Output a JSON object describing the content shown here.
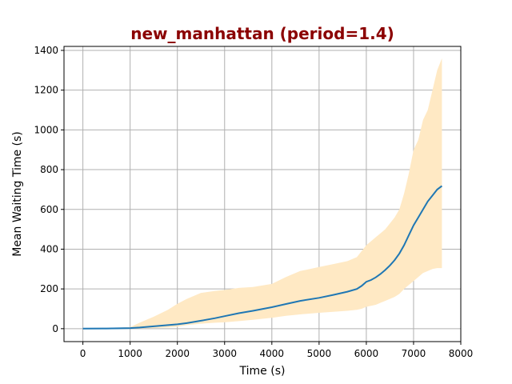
{
  "chart_data": {
    "type": "line",
    "title": "new_manhattan (period=1.4)",
    "xlabel": "Time (s)",
    "ylabel": "Mean Waiting Time (s)",
    "xlim": [
      -400,
      8000
    ],
    "ylim": [
      -65,
      1420
    ],
    "xticks": [
      0,
      1000,
      2000,
      3000,
      4000,
      5000,
      6000,
      7000,
      8000
    ],
    "yticks": [
      0,
      200,
      400,
      600,
      800,
      1000,
      1200,
      1400
    ],
    "grid": true,
    "colors": {
      "title": "#8b0000",
      "line": "#1f77b4",
      "band": "#ffe9c4",
      "grid": "#b0b0b0"
    },
    "series": [
      {
        "x": [
          0,
          500,
          1000,
          1200,
          1500,
          1800,
          2000,
          2200,
          2500,
          2800,
          3000,
          3300,
          3600,
          4000,
          4300,
          4600,
          5000,
          5300,
          5600,
          5800,
          5900,
          6000,
          6100,
          6200,
          6300,
          6400,
          6500,
          6600,
          6700,
          6800,
          6900,
          7000,
          7100,
          7200,
          7300,
          7400,
          7500,
          7600
        ],
        "y": [
          0,
          1,
          3,
          6,
          12,
          18,
          22,
          28,
          40,
          53,
          63,
          78,
          90,
          108,
          124,
          140,
          155,
          170,
          186,
          200,
          215,
          236,
          245,
          258,
          275,
          295,
          318,
          345,
          378,
          420,
          470,
          520,
          560,
          600,
          640,
          670,
          700,
          718
        ],
        "band_upper": [
          0,
          2,
          8,
          30,
          60,
          95,
          125,
          150,
          180,
          190,
          195,
          205,
          210,
          225,
          260,
          290,
          310,
          325,
          340,
          360,
          390,
          420,
          440,
          460,
          480,
          500,
          530,
          560,
          600,
          680,
          780,
          900,
          950,
          1050,
          1100,
          1200,
          1300,
          1360
        ],
        "band_lower": [
          0,
          0,
          0,
          1,
          3,
          6,
          10,
          18,
          25,
          30,
          32,
          38,
          45,
          55,
          65,
          72,
          80,
          85,
          90,
          95,
          100,
          110,
          115,
          120,
          130,
          140,
          150,
          160,
          175,
          200,
          220,
          240,
          260,
          280,
          290,
          300,
          305,
          305
        ]
      }
    ]
  }
}
